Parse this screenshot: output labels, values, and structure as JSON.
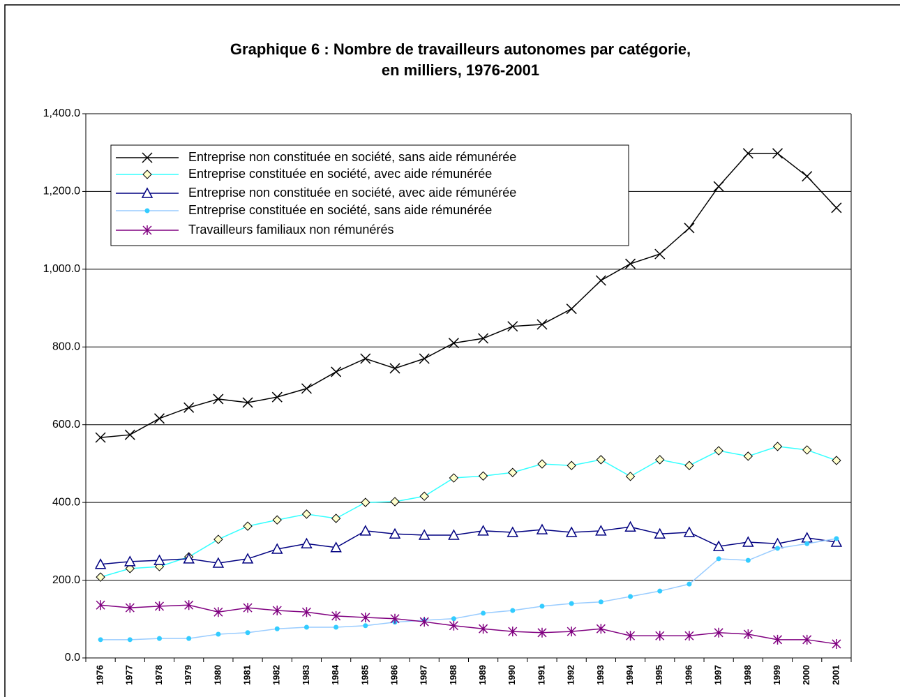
{
  "chart_data": {
    "type": "line",
    "title": [
      "Graphique 6 : Nombre de travailleurs autonomes par catégorie,",
      "en milliers, 1976-2001"
    ],
    "categories": [
      "1976",
      "1977",
      "1978",
      "1979",
      "1980",
      "1981",
      "1982",
      "1983",
      "1984",
      "1985",
      "1986",
      "1987",
      "1988",
      "1989",
      "1990",
      "1991",
      "1992",
      "1993",
      "1994",
      "1995",
      "1996",
      "1997",
      "1998",
      "1999",
      "2000",
      "2001"
    ],
    "ylim": [
      0,
      1400
    ],
    "yticks": [
      {
        "value": 0,
        "label": "0.0"
      },
      {
        "value": 200,
        "label": "200.0"
      },
      {
        "value": 400,
        "label": "400.0"
      },
      {
        "value": 600,
        "label": "600.0"
      },
      {
        "value": 800,
        "label": "800.0"
      },
      {
        "value": 1000,
        "label": "1,000.0"
      },
      {
        "value": 1200,
        "label": "1,200.0"
      },
      {
        "value": 1400,
        "label": "1,400.0"
      }
    ],
    "grid": true,
    "series": [
      {
        "name": "Entreprise non constituée en société, sans aide rémunérée",
        "color": "#000000",
        "marker": "x",
        "values": [
          567,
          574,
          616,
          644,
          666,
          657,
          671,
          693,
          736,
          770,
          745,
          770,
          810,
          822,
          853,
          858,
          898,
          971,
          1014,
          1039,
          1106,
          1213,
          1298,
          1298,
          1239,
          1158
        ]
      },
      {
        "name": "Entreprise constituée en société, avec aide rémunérée",
        "color": "#33ffff",
        "marker": "diamond",
        "values": [
          208,
          230,
          235,
          260,
          305,
          339,
          355,
          370,
          359,
          400,
          402,
          416,
          463,
          468,
          477,
          499,
          495,
          510,
          467,
          510,
          495,
          533,
          519,
          544,
          535,
          508
        ]
      },
      {
        "name": "Entreprise non constituée en société, avec aide rémunérée",
        "color": "#000080",
        "marker": "triangle",
        "values": [
          241,
          248,
          251,
          255,
          244,
          255,
          280,
          294,
          284,
          327,
          319,
          316,
          316,
          327,
          323,
          330,
          323,
          327,
          337,
          319,
          323,
          287,
          298,
          294,
          309,
          298
        ]
      },
      {
        "name": "Entreprise constituée en société, sans aide rémunérée",
        "color": "#99ccff",
        "marker": "circle",
        "values": [
          47,
          47,
          50,
          50,
          61,
          65,
          75,
          79,
          79,
          83,
          92,
          97,
          101,
          115,
          122,
          133,
          140,
          144,
          158,
          172,
          190,
          255,
          251,
          282,
          294,
          307
        ]
      },
      {
        "name": "Travailleurs familiaux non rémunérés",
        "color": "#800080",
        "marker": "star",
        "values": [
          136,
          129,
          133,
          136,
          118,
          129,
          122,
          118,
          108,
          104,
          101,
          93,
          83,
          75,
          68,
          65,
          68,
          75,
          57,
          57,
          57,
          65,
          61,
          47,
          47,
          36
        ]
      }
    ]
  }
}
